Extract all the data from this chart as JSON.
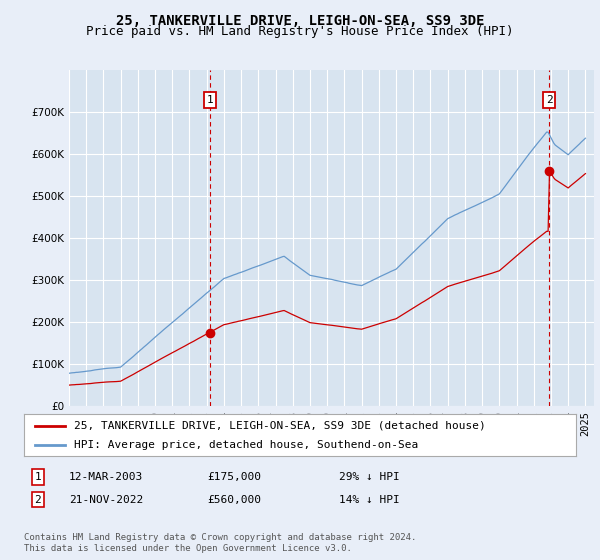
{
  "title": "25, TANKERVILLE DRIVE, LEIGH-ON-SEA, SS9 3DE",
  "subtitle": "Price paid vs. HM Land Registry's House Price Index (HPI)",
  "xlim_start": 1995.0,
  "xlim_end": 2025.5,
  "ylim": [
    0,
    800000
  ],
  "yticks": [
    0,
    100000,
    200000,
    300000,
    400000,
    500000,
    600000,
    700000
  ],
  "background_color": "#e8eef8",
  "plot_bg_color": "#d8e4f0",
  "grid_color": "#ffffff",
  "red_line_color": "#cc0000",
  "blue_line_color": "#6699cc",
  "vline_color": "#cc0000",
  "sale1_x": 2003.19,
  "sale1_y": 175000,
  "sale2_x": 2022.89,
  "sale2_y": 560000,
  "legend_label_red": "25, TANKERVILLE DRIVE, LEIGH-ON-SEA, SS9 3DE (detached house)",
  "legend_label_blue": "HPI: Average price, detached house, Southend-on-Sea",
  "table_rows": [
    {
      "num": "1",
      "date": "12-MAR-2003",
      "price": "£175,000",
      "hpi": "29% ↓ HPI"
    },
    {
      "num": "2",
      "date": "21-NOV-2022",
      "price": "£560,000",
      "hpi": "14% ↓ HPI"
    }
  ],
  "footer": "Contains HM Land Registry data © Crown copyright and database right 2024.\nThis data is licensed under the Open Government Licence v3.0.",
  "title_fontsize": 10,
  "subtitle_fontsize": 9,
  "tick_fontsize": 7.5,
  "legend_fontsize": 8,
  "table_fontsize": 8,
  "footer_fontsize": 6.5
}
